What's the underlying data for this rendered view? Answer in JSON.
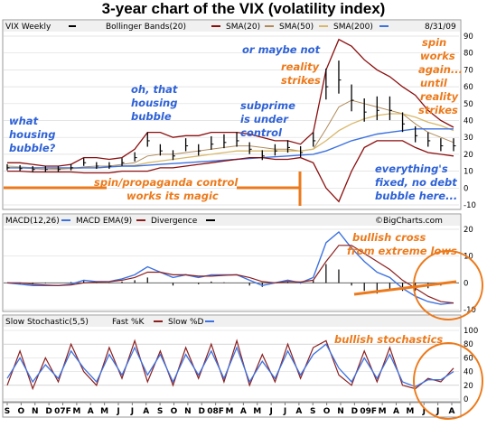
{
  "title": "3-year chart of the VIX (volatility index)",
  "colors": {
    "orange": "#ec7a1c",
    "blue": "#2f62d6",
    "boll": "#8b0e0e",
    "sma20": "#b08b5a",
    "sma50": "#d8b86a",
    "sma200": "#3d72e0",
    "macd": "#3d72e0",
    "ema": "#8b1f1f",
    "price": "#000000"
  },
  "price_panel": {
    "legend": [
      "VIX Weekly",
      "Bollinger Bands(20)",
      "SMA(20)",
      "SMA(50)",
      "SMA(200)",
      "8/31/09"
    ],
    "yticks": [
      "90",
      "80",
      "70",
      "60",
      "50",
      "40",
      "30",
      "20",
      "10",
      "0",
      "-10"
    ]
  },
  "macd_panel": {
    "legend": [
      "MACD(12,26)",
      "MACD EMA(9)",
      "Divergence"
    ],
    "credit": "©BigCharts.com",
    "yticks": [
      "20",
      "10",
      "0",
      "-10"
    ]
  },
  "stoch_panel": {
    "legend": [
      "Slow Stochastic(5,5)",
      "Fast %K",
      "Slow %D"
    ],
    "yticks": [
      "100",
      "80",
      "60",
      "40",
      "20",
      "0"
    ]
  },
  "x_labels": [
    "S",
    "O",
    "N",
    "D",
    "07F",
    "M",
    "A",
    "M",
    "J",
    "J",
    "A",
    "S",
    "O",
    "N",
    "D",
    "08F",
    "M",
    "A",
    "M",
    "J",
    "J",
    "A",
    "S",
    "O",
    "N",
    "D",
    "09F",
    "M",
    "A",
    "M",
    "J",
    "J",
    "A"
  ],
  "annotations": {
    "what_housing": [
      "what",
      "housing",
      "bubble?"
    ],
    "oh_that": [
      "oh, that",
      "housing",
      "bubble"
    ],
    "subprime": [
      "subprime",
      "is under",
      "control"
    ],
    "or_maybe": [
      "or maybe not"
    ],
    "reality": [
      "reality",
      "strikes"
    ],
    "spin_works": [
      "spin",
      "works",
      "again...",
      "until",
      "reality",
      "strikes"
    ],
    "spin_propaganda": [
      "spin/propaganda control",
      "works its magic"
    ],
    "everythings_fixed": [
      "everything's",
      "fixed, no debt",
      "bubble here..."
    ],
    "bullish_cross": [
      "bullish cross",
      "from extreme lows"
    ],
    "bullish_stoch": [
      "bullish stochastics"
    ]
  },
  "chart_data": [
    {
      "type": "line",
      "title": "VIX Weekly",
      "x": [
        "2006-09",
        "2006-10",
        "2006-11",
        "2006-12",
        "2007-01",
        "2007-02",
        "2007-03",
        "2007-04",
        "2007-05",
        "2007-06",
        "2007-07",
        "2007-08",
        "2007-09",
        "2007-10",
        "2007-11",
        "2007-12",
        "2008-01",
        "2008-02",
        "2008-03",
        "2008-04",
        "2008-05",
        "2008-06",
        "2008-07",
        "2008-08",
        "2008-09",
        "2008-10",
        "2008-11",
        "2008-12",
        "2009-01",
        "2009-02",
        "2009-03",
        "2009-04",
        "2009-05",
        "2009-06",
        "2009-07",
        "2009-08"
      ],
      "series": [
        {
          "name": "VIX Weekly",
          "values": [
            12,
            11.5,
            11,
            11,
            11,
            12,
            15,
            13,
            13,
            15,
            18,
            28,
            22,
            19,
            25,
            22,
            26,
            27,
            28,
            23,
            19,
            22,
            24,
            21,
            28,
            60,
            64,
            52,
            45,
            46,
            46,
            38,
            31,
            28,
            25,
            25
          ]
        },
        {
          "name": "SMA(20)",
          "values": [
            12,
            12,
            11.5,
            11,
            11,
            11.5,
            12.5,
            13,
            13,
            14,
            15,
            19,
            20,
            20,
            21,
            22,
            23,
            24,
            25,
            25,
            24,
            23,
            23,
            22,
            23,
            35,
            48,
            52,
            50,
            48,
            46,
            44,
            38,
            33,
            30,
            27
          ]
        },
        {
          "name": "SMA(50)",
          "values": [
            13,
            12.5,
            12,
            12,
            11.5,
            11.5,
            12,
            12,
            12.5,
            13,
            13.5,
            15,
            16,
            17,
            18,
            19,
            20,
            21,
            22,
            22,
            22,
            22,
            22,
            22,
            23,
            28,
            34,
            38,
            41,
            43,
            44,
            44,
            42,
            39,
            37,
            34
          ]
        },
        {
          "name": "SMA(200)",
          "values": [
            12,
            12,
            12,
            12,
            12,
            12,
            12,
            12,
            12.5,
            13,
            13,
            13.5,
            14,
            14.5,
            15,
            15.5,
            16,
            16.5,
            17,
            17.5,
            18,
            18.5,
            19,
            19.5,
            20,
            22,
            25,
            28,
            30,
            32,
            33,
            34,
            35,
            35,
            35,
            35
          ]
        },
        {
          "name": "Bollinger Bands(20) upper",
          "values": [
            15,
            15,
            14,
            13,
            13,
            14,
            18,
            18,
            17,
            18,
            23,
            33,
            33,
            30,
            31,
            31,
            33,
            33,
            33,
            32,
            30,
            28,
            28,
            26,
            33,
            70,
            88,
            84,
            76,
            70,
            66,
            60,
            55,
            46,
            40,
            36
          ]
        },
        {
          "name": "Bollinger Bands(20) lower",
          "values": [
            10,
            10,
            9.5,
            9.5,
            9.5,
            9.5,
            9,
            9,
            9,
            10,
            10,
            10,
            12,
            12,
            13,
            14,
            15,
            16,
            17,
            18,
            18,
            17,
            17,
            18,
            15,
            0,
            -8,
            10,
            24,
            28,
            28,
            28,
            24,
            21,
            20,
            19
          ]
        }
      ],
      "ylim": [
        -10,
        90
      ]
    },
    {
      "type": "line",
      "title": "MACD(12,26)",
      "x": [
        "2006-09",
        "2006-10",
        "2006-11",
        "2006-12",
        "2007-01",
        "2007-02",
        "2007-03",
        "2007-04",
        "2007-05",
        "2007-06",
        "2007-07",
        "2007-08",
        "2007-09",
        "2007-10",
        "2007-11",
        "2007-12",
        "2008-01",
        "2008-02",
        "2008-03",
        "2008-04",
        "2008-05",
        "2008-06",
        "2008-07",
        "2008-08",
        "2008-09",
        "2008-10",
        "2008-11",
        "2008-12",
        "2009-01",
        "2009-02",
        "2009-03",
        "2009-04",
        "2009-05",
        "2009-06",
        "2009-07",
        "2009-08"
      ],
      "series": [
        {
          "name": "MACD(12,26)",
          "values": [
            0,
            -0.5,
            -1,
            -1,
            -1,
            -0.5,
            1,
            0.5,
            0.5,
            1.5,
            3,
            6,
            4,
            2,
            3,
            2,
            3,
            3,
            3,
            1,
            -1,
            0,
            1,
            0,
            2,
            15,
            19,
            13,
            8,
            4,
            2,
            -2,
            -5,
            -7,
            -8,
            -7.5
          ]
        },
        {
          "name": "MACD EMA(9)",
          "values": [
            0,
            0,
            -0.5,
            -0.8,
            -1,
            -0.8,
            0,
            0.3,
            0.4,
            1,
            2,
            4,
            4,
            3,
            3,
            2.5,
            2.5,
            2.8,
            3,
            2,
            0.5,
            0,
            0.5,
            0.3,
            1,
            8,
            14,
            14,
            11,
            8,
            5,
            1,
            -2,
            -5,
            -7,
            -7.5
          ]
        },
        {
          "name": "Divergence",
          "values": [
            0,
            -0.5,
            -0.5,
            -0.2,
            0,
            0.3,
            1,
            0.2,
            0.1,
            0.5,
            1,
            2,
            0,
            -1,
            0,
            -0.5,
            0.5,
            0.2,
            0,
            -1,
            -1.5,
            0,
            0.5,
            -0.3,
            1,
            7,
            5,
            -1,
            -3,
            -4,
            -3,
            -3,
            -3,
            -2,
            -1,
            0
          ]
        }
      ],
      "ylim": [
        -10,
        20
      ]
    },
    {
      "type": "line",
      "title": "Slow Stochastic(5,5)",
      "x": [
        "2006-09",
        "2006-10",
        "2006-11",
        "2006-12",
        "2007-01",
        "2007-02",
        "2007-03",
        "2007-04",
        "2007-05",
        "2007-06",
        "2007-07",
        "2007-08",
        "2007-09",
        "2007-10",
        "2007-11",
        "2007-12",
        "2008-01",
        "2008-02",
        "2008-03",
        "2008-04",
        "2008-05",
        "2008-06",
        "2008-07",
        "2008-08",
        "2008-09",
        "2008-10",
        "2008-11",
        "2008-12",
        "2009-01",
        "2009-02",
        "2009-03",
        "2009-04",
        "2009-05",
        "2009-06",
        "2009-07",
        "2009-08"
      ],
      "series": [
        {
          "name": "Fast %K",
          "values": [
            20,
            70,
            15,
            60,
            25,
            80,
            40,
            20,
            75,
            30,
            85,
            25,
            70,
            20,
            75,
            30,
            80,
            25,
            85,
            20,
            65,
            25,
            80,
            30,
            75,
            85,
            35,
            20,
            70,
            25,
            75,
            20,
            15,
            30,
            25,
            45
          ]
        },
        {
          "name": "Slow %D",
          "values": [
            30,
            60,
            25,
            50,
            30,
            70,
            45,
            25,
            65,
            35,
            75,
            35,
            65,
            25,
            65,
            35,
            70,
            30,
            75,
            25,
            55,
            30,
            70,
            35,
            65,
            80,
            45,
            25,
            60,
            30,
            65,
            25,
            18,
            28,
            28,
            40
          ]
        }
      ],
      "ylim": [
        0,
        100
      ]
    }
  ]
}
